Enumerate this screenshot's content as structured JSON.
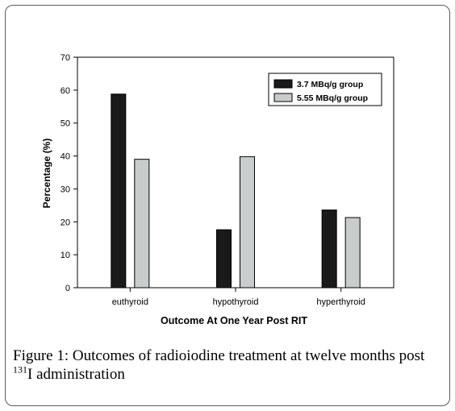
{
  "chart_data": {
    "type": "bar",
    "categories": [
      "euthyroid",
      "hypothyroid",
      "hyperthyroid"
    ],
    "series": [
      {
        "name": "3.7 MBq/g group",
        "values": [
          58.8,
          17.6,
          23.6
        ],
        "color": "#1a1a1a"
      },
      {
        "name": "5.55 MBq/g group",
        "values": [
          39.0,
          39.8,
          21.3
        ],
        "color": "#c8cccc"
      }
    ],
    "xlabel": "Outcome At One Year Post RIT",
    "ylabel": "Percentage (%)",
    "ylim": [
      0,
      70
    ],
    "yticks": [
      "0",
      "10",
      "20",
      "30",
      "40",
      "50",
      "60",
      "70"
    ],
    "grid": false,
    "legend": "top-right"
  },
  "caption": {
    "label": "Figure 1:",
    "text_before": "Outcomes of radioiodine treatment at twelve months post",
    "superscript": "131",
    "text_after": "I administration"
  }
}
